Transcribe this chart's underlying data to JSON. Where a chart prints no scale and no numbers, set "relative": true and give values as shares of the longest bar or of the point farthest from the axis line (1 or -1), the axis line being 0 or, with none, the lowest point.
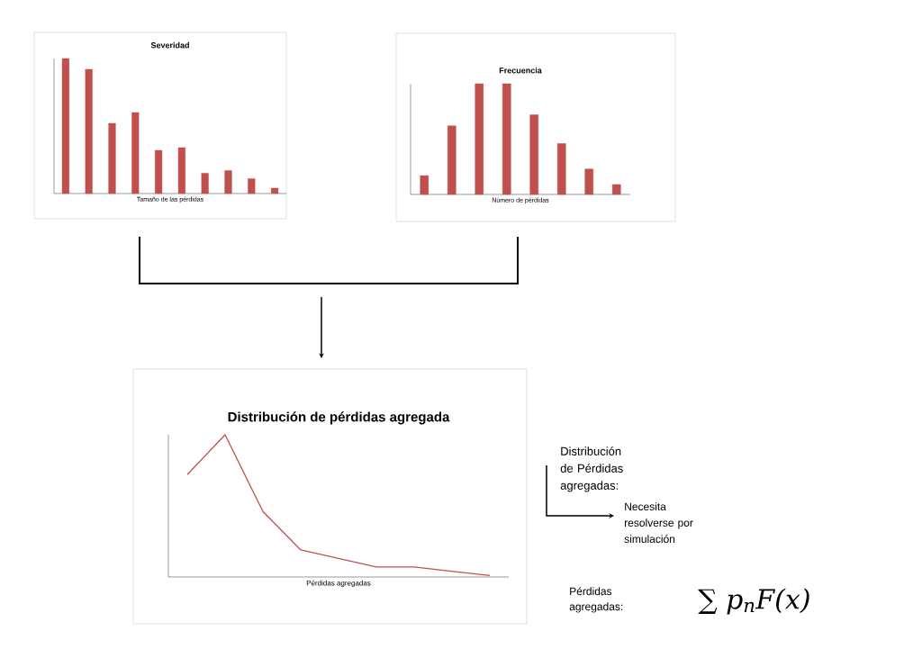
{
  "chart_data": [
    {
      "type": "bar",
      "title": "Severidad",
      "xlabel": "Tamaño de las pérdidas",
      "relative": true,
      "categories": [
        null,
        null,
        null,
        null,
        null,
        null,
        null,
        null,
        null,
        null
      ],
      "color": "#c0504d",
      "values": [
        1,
        0.92,
        0.52,
        0.6,
        0.32,
        0.34,
        0.15,
        0.17,
        0.11,
        0.04
      ]
    },
    {
      "type": "bar",
      "title": "Frecuencia",
      "xlabel": "Número de pérdidas",
      "relative": true,
      "categories": [
        null,
        null,
        null,
        null,
        null,
        null,
        null,
        null
      ],
      "color": "#c0504d",
      "values": [
        0.17,
        0.62,
        1,
        1,
        0.72,
        0.46,
        0.23,
        0.09
      ]
    },
    {
      "type": "line",
      "title": "Distribución de pérdidas agregada",
      "xlabel": "Pérdidas agregadas",
      "relative": true,
      "categories": [
        null,
        null,
        null,
        null,
        null,
        null,
        null,
        null,
        null
      ],
      "color": "#c0504d",
      "values": [
        0.72,
        1,
        0.46,
        0.19,
        0.13,
        0.07,
        0.07,
        0.04,
        0.01
      ]
    },
    {
      "type": "other",
      "annotations": [
        "Distribución de Pérdidas agregadas:",
        "Necesita resolverse por simulación",
        "Pérdidas agregadas:",
        "∑ p$_{n}$F(x)"
      ]
    }
  ]
}
